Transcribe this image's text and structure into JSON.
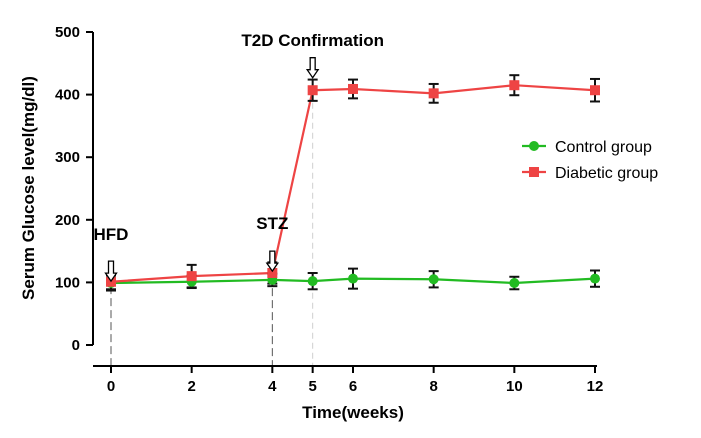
{
  "chart_data": {
    "type": "line",
    "title": "",
    "xlabel": "Time(weeks)",
    "ylabel": "Serum Glucose level(mg/dl)",
    "xlim": [
      0,
      12
    ],
    "ylim": [
      0,
      500
    ],
    "xticks": [
      0,
      2,
      4,
      5,
      6,
      8,
      10,
      12
    ],
    "yticks": [
      0,
      100,
      200,
      300,
      400,
      500
    ],
    "grid": false,
    "legend_position": "right",
    "series": [
      {
        "name": "Control group",
        "color": "#22bb22",
        "marker": "circle",
        "x": [
          0,
          2,
          4,
          5,
          6,
          8,
          10,
          12
        ],
        "y": [
          99,
          101,
          104,
          102,
          106,
          105,
          99,
          106
        ],
        "err": [
          12,
          10,
          10,
          13,
          16,
          13,
          10,
          13
        ]
      },
      {
        "name": "Diabetic group",
        "color": "#ee4444",
        "marker": "square",
        "x": [
          0,
          2,
          4,
          5,
          6,
          8,
          10,
          12
        ],
        "y": [
          101,
          110,
          115,
          407,
          409,
          402,
          415,
          407
        ],
        "err": [
          12,
          18,
          17,
          17,
          15,
          15,
          16,
          18
        ]
      }
    ],
    "annotations": [
      {
        "label": "HFD",
        "x": 0,
        "arrow_tip_y": 102,
        "label_y": 168
      },
      {
        "label": "STZ",
        "x": 4,
        "arrow_tip_y": 118,
        "label_y": 185
      },
      {
        "label": "T2D Confirmation",
        "x": 5,
        "arrow_tip_y": 427,
        "label_y": 478
      }
    ]
  }
}
